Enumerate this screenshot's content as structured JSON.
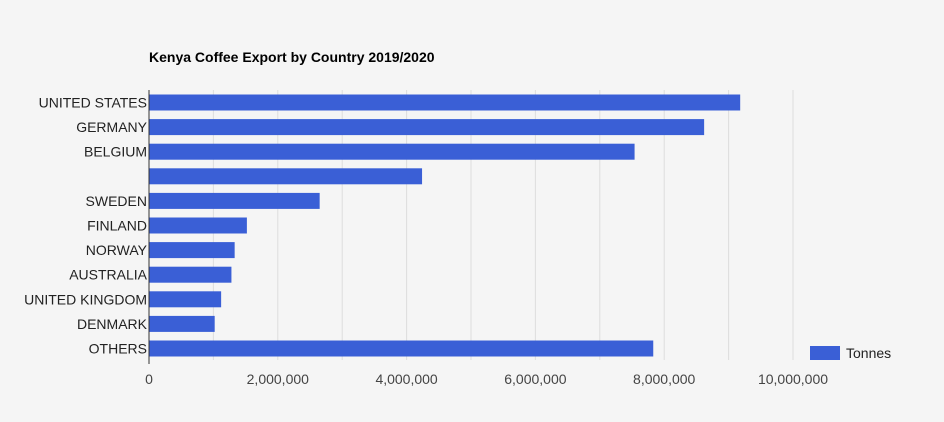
{
  "chart_data": {
    "type": "bar",
    "orientation": "horizontal",
    "title": "Kenya Coffee Export by Country 2019/2020",
    "xlabel": "",
    "ylabel": "",
    "categories": [
      "UNITED STATES",
      "GERMANY",
      "BELGIUM",
      "",
      "SWEDEN",
      "FINLAND",
      "NORWAY",
      "AUSTRALIA",
      "UNITED KINGDOM",
      "DENMARK",
      "OTHERS"
    ],
    "series": [
      {
        "name": "Tonnes",
        "values": [
          9180000,
          8620000,
          7540000,
          4240000,
          2650000,
          1520000,
          1330000,
          1280000,
          1120000,
          1020000,
          7830000
        ]
      }
    ],
    "xlim": [
      0,
      10000000
    ],
    "x_ticks": [
      0,
      2000000,
      4000000,
      6000000,
      8000000,
      10000000
    ],
    "x_tick_labels": [
      "0",
      "2,000,000",
      "4,000,000",
      "6,000,000",
      "8,000,000",
      "10,000,000"
    ],
    "grid": true,
    "legend_position": "bottom-right",
    "colors": {
      "bar": "#3a5fd6",
      "background": "#f5f5f5",
      "grid": "#dddddd",
      "axis": "#333333"
    }
  }
}
